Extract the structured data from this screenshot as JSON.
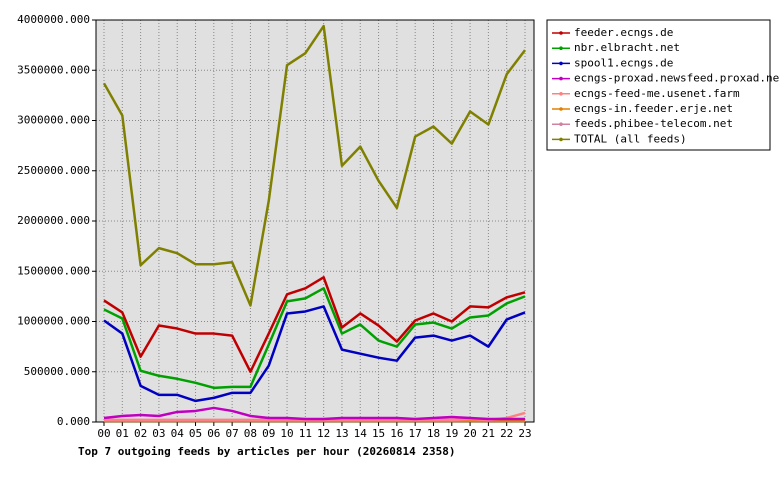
{
  "chart_data": {
    "type": "line",
    "x_label": "Top 7 outgoing feeds by articles per hour (20260814 2358)",
    "categories": [
      "00",
      "01",
      "02",
      "03",
      "04",
      "05",
      "06",
      "07",
      "08",
      "09",
      "10",
      "11",
      "12",
      "13",
      "14",
      "15",
      "16",
      "17",
      "18",
      "19",
      "20",
      "21",
      "22",
      "23"
    ],
    "ylim": [
      0,
      4000000
    ],
    "yticks": [
      {
        "value": 0,
        "label": "0.000"
      },
      {
        "value": 500000,
        "label": "500000.000"
      },
      {
        "value": 1000000,
        "label": "1000000.000"
      },
      {
        "value": 1500000,
        "label": "1500000.000"
      },
      {
        "value": 2000000,
        "label": "2000000.000"
      },
      {
        "value": 2500000,
        "label": "2500000.000"
      },
      {
        "value": 3000000,
        "label": "3000000.000"
      },
      {
        "value": 3500000,
        "label": "3500000.000"
      },
      {
        "value": 4000000,
        "label": "4000000.000"
      }
    ],
    "grid": true,
    "legend": "right",
    "series": [
      {
        "name": "feeder.ecngs.de",
        "color": "#c00000",
        "values": [
          1210000,
          1090000,
          650000,
          960000,
          930000,
          880000,
          880000,
          860000,
          500000,
          880000,
          1270000,
          1330000,
          1440000,
          940000,
          1080000,
          960000,
          800000,
          1010000,
          1080000,
          1000000,
          1150000,
          1140000,
          1240000,
          1290000
        ]
      },
      {
        "name": "nbr.elbracht.net",
        "color": "#00a000",
        "values": [
          1120000,
          1030000,
          510000,
          460000,
          430000,
          390000,
          340000,
          350000,
          350000,
          770000,
          1200000,
          1230000,
          1330000,
          880000,
          970000,
          810000,
          750000,
          970000,
          990000,
          930000,
          1040000,
          1060000,
          1180000,
          1250000
        ]
      },
      {
        "name": "spool1.ecngs.de",
        "color": "#0000c0",
        "values": [
          1010000,
          880000,
          360000,
          270000,
          270000,
          210000,
          240000,
          290000,
          290000,
          560000,
          1080000,
          1100000,
          1150000,
          720000,
          680000,
          640000,
          610000,
          840000,
          860000,
          810000,
          860000,
          750000,
          1020000,
          1090000
        ]
      },
      {
        "name": "ecngs-proxad.newsfeed.proxad.net",
        "color": "#c000c0",
        "values": [
          40000,
          60000,
          70000,
          60000,
          100000,
          110000,
          140000,
          110000,
          60000,
          40000,
          40000,
          30000,
          30000,
          40000,
          40000,
          40000,
          40000,
          30000,
          40000,
          50000,
          40000,
          30000,
          30000,
          30000
        ]
      },
      {
        "name": "ecngs-feed-me.usenet.farm",
        "color": "#ff8080",
        "values": [
          20000,
          20000,
          20000,
          20000,
          20000,
          20000,
          20000,
          20000,
          20000,
          20000,
          20000,
          20000,
          20000,
          20000,
          20000,
          20000,
          20000,
          20000,
          20000,
          20000,
          30000,
          20000,
          40000,
          90000
        ]
      },
      {
        "name": "ecngs-in.feeder.erje.net",
        "color": "#e08000",
        "values": [
          10000,
          10000,
          10000,
          10000,
          10000,
          10000,
          10000,
          10000,
          10000,
          10000,
          10000,
          10000,
          10000,
          10000,
          10000,
          10000,
          10000,
          10000,
          10000,
          10000,
          10000,
          10000,
          10000,
          10000
        ]
      },
      {
        "name": "feeds.phibee-telecom.net",
        "color": "#d080a0",
        "values": [
          20000,
          20000,
          20000,
          20000,
          20000,
          20000,
          20000,
          20000,
          20000,
          20000,
          20000,
          20000,
          20000,
          20000,
          20000,
          20000,
          20000,
          20000,
          20000,
          20000,
          20000,
          20000,
          20000,
          20000
        ]
      },
      {
        "name": "TOTAL (all feeds)",
        "color": "#808000",
        "values": [
          3370000,
          3050000,
          1560000,
          1730000,
          1680000,
          1570000,
          1570000,
          1590000,
          1160000,
          2200000,
          3550000,
          3670000,
          3940000,
          2550000,
          2740000,
          2400000,
          2130000,
          2840000,
          2940000,
          2770000,
          3090000,
          2960000,
          3460000,
          3700000
        ]
      }
    ]
  }
}
